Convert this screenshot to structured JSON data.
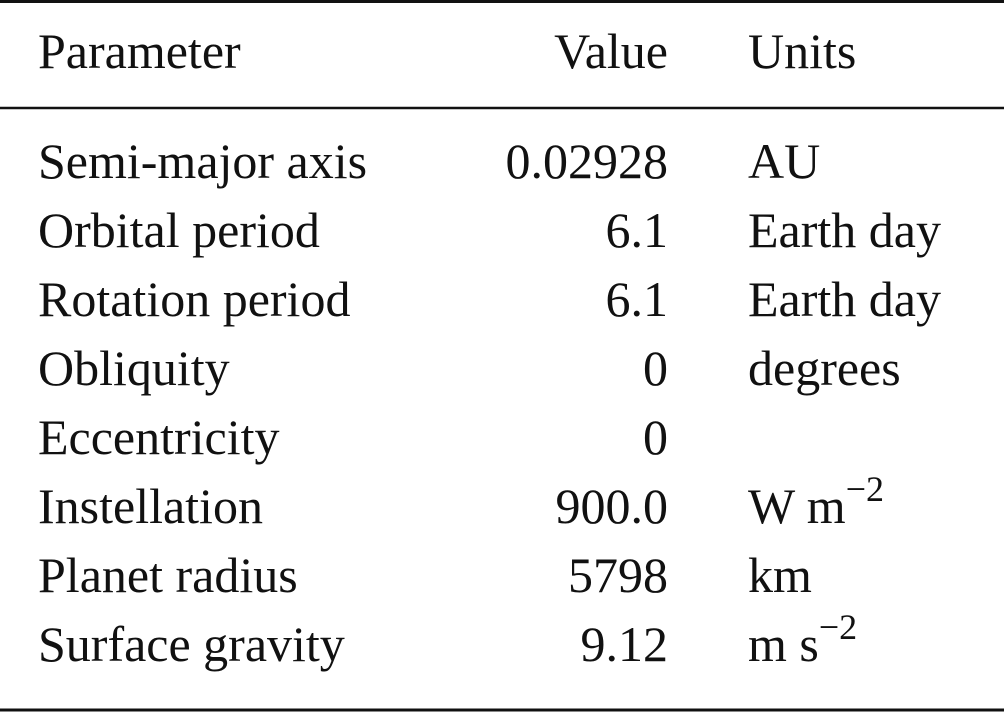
{
  "table": {
    "header": {
      "parameter": "Parameter",
      "value": "Value",
      "units": "Units"
    },
    "rows": [
      {
        "parameter": "Semi-major axis",
        "value": "0.02928",
        "units": "AU"
      },
      {
        "parameter": "Orbital period",
        "value": "6.1",
        "units": "Earth day"
      },
      {
        "parameter": "Rotation period",
        "value": "6.1",
        "units": "Earth day"
      },
      {
        "parameter": "Obliquity",
        "value": "0",
        "units": "degrees"
      },
      {
        "parameter": "Eccentricity",
        "value": "0"
      },
      {
        "parameter": "Instellation",
        "value": "900.0",
        "units": "W m",
        "units_sup": "−2"
      },
      {
        "parameter": "Planet radius",
        "value": "5798",
        "units": "km"
      },
      {
        "parameter": "Surface gravity",
        "value": "9.12",
        "units": "m s",
        "units_sup": "−2"
      }
    ]
  }
}
